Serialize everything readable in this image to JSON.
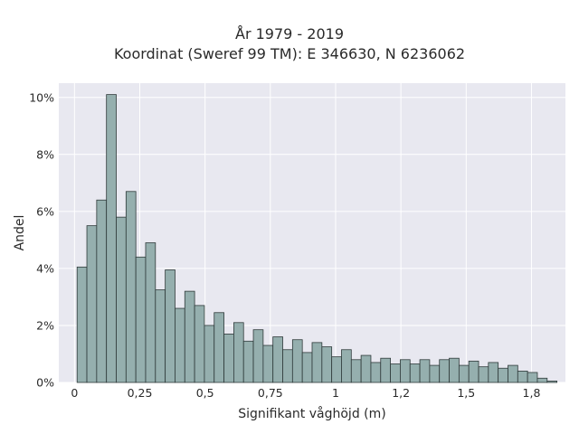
{
  "chart_data": {
    "type": "bar",
    "title_line1": "År 1979 - 2019",
    "title_line2": "Koordinat (Sweref 99 TM): E 346630, N 6236062",
    "xlabel": "Signifikant våghöjd (m)",
    "ylabel": "Andel",
    "xlim": [
      -0.06,
      1.88
    ],
    "ylim": [
      0,
      10.5
    ],
    "bin_width": 0.0375,
    "x_start": 0.01,
    "x_ticks": [
      0,
      0.25,
      0.5,
      0.75,
      1,
      1.25,
      1.5,
      1.75
    ],
    "x_tick_labels": [
      "0",
      "0,25",
      "0,5",
      "0,75",
      "1",
      "1,2",
      "1,5",
      "1,8"
    ],
    "y_ticks": [
      0,
      2,
      4,
      6,
      8,
      10
    ],
    "y_tick_labels": [
      "0%",
      "2%",
      "4%",
      "6%",
      "8%",
      "10%"
    ],
    "values": [
      4.05,
      5.5,
      6.4,
      10.1,
      5.8,
      6.7,
      4.4,
      4.9,
      3.25,
      3.95,
      2.6,
      3.2,
      2.7,
      2.0,
      2.45,
      1.7,
      2.1,
      1.45,
      1.85,
      1.3,
      1.6,
      1.15,
      1.5,
      1.05,
      1.4,
      1.25,
      0.9,
      1.15,
      0.8,
      0.95,
      0.7,
      0.85,
      0.65,
      0.8,
      0.65,
      0.8,
      0.6,
      0.8,
      0.85,
      0.6,
      0.75,
      0.55,
      0.7,
      0.5,
      0.6,
      0.4,
      0.35,
      0.15,
      0.05
    ],
    "bar_color": "#95afae",
    "bar_edge_color": "#2f3a3a",
    "background_color": "#e8e8f0",
    "grid": true,
    "grid_color": "#ffffff"
  }
}
